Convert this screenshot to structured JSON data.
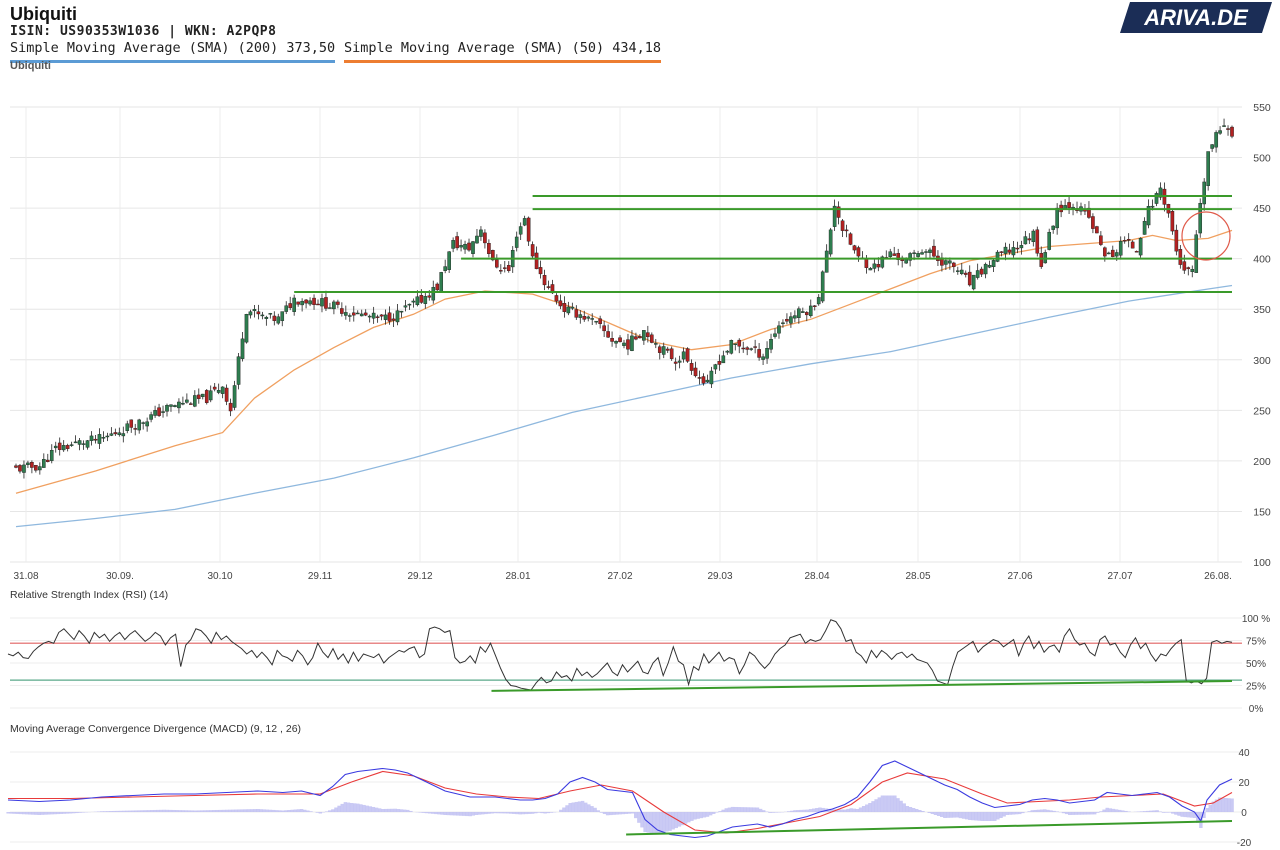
{
  "header": {
    "title": "Ubiquiti",
    "ids": "ISIN: US90353W1036  | WKN: A2PQP8",
    "ghost_title": "Ubiquiti"
  },
  "brand": {
    "logo_text": "ARIVA.DE",
    "navy": "#1b2d56",
    "red": "#c8102e"
  },
  "legend": [
    {
      "label": "Simple Moving Average (SMA) (200) 373,50",
      "color": "#5b9bd5"
    },
    {
      "label": "Simple Moving Average (SMA) (50) 434,18",
      "color": "#ed7d31"
    }
  ],
  "panels": {
    "rsi_label": "Relative Strength Index (RSI) (14)",
    "macd_label": "Moving Average Convergence Divergence (MACD) (9, 12 , 26)"
  },
  "chart_data": [
    {
      "type": "candlestick",
      "x_tick_labels": [
        "31.08",
        "30.09.",
        "30.10",
        "29.11",
        "29.12",
        "28.01",
        "27.02",
        "29.03",
        "28.04",
        "28.05",
        "27.06",
        "27.07",
        "26.08."
      ],
      "y_ticks": [
        100,
        150,
        200,
        250,
        300,
        350,
        400,
        450,
        500,
        550
      ],
      "ylim": [
        100,
        550
      ],
      "grid": true,
      "colors": {
        "up": "#2e7d4f",
        "down": "#b22222",
        "sma200": "#8fb8de",
        "sma50": "#f0a060",
        "levels": "#3a9a2a"
      },
      "close_path": [
        [
          0,
          192
        ],
        [
          6,
          195
        ],
        [
          10,
          212
        ],
        [
          16,
          218
        ],
        [
          22,
          222
        ],
        [
          26,
          230
        ],
        [
          32,
          240
        ],
        [
          38,
          252
        ],
        [
          42,
          258
        ],
        [
          48,
          262
        ],
        [
          52,
          275
        ],
        [
          54,
          250
        ],
        [
          56,
          300
        ],
        [
          58,
          350
        ],
        [
          62,
          342
        ],
        [
          66,
          340
        ],
        [
          70,
          360
        ],
        [
          76,
          358
        ],
        [
          82,
          350
        ],
        [
          86,
          345
        ],
        [
          92,
          340
        ],
        [
          96,
          345
        ],
        [
          100,
          355
        ],
        [
          102,
          360
        ],
        [
          106,
          372
        ],
        [
          108,
          395
        ],
        [
          110,
          415
        ],
        [
          114,
          410
        ],
        [
          117,
          430
        ],
        [
          120,
          395
        ],
        [
          124,
          388
        ],
        [
          126,
          425
        ],
        [
          128,
          440
        ],
        [
          130,
          400
        ],
        [
          134,
          370
        ],
        [
          138,
          350
        ],
        [
          142,
          345
        ],
        [
          146,
          335
        ],
        [
          150,
          320
        ],
        [
          154,
          315
        ],
        [
          158,
          330
        ],
        [
          162,
          312
        ],
        [
          166,
          300
        ],
        [
          168,
          305
        ],
        [
          172,
          282
        ],
        [
          174,
          275
        ],
        [
          176,
          295
        ],
        [
          180,
          315
        ],
        [
          184,
          312
        ],
        [
          188,
          305
        ],
        [
          192,
          335
        ],
        [
          196,
          345
        ],
        [
          200,
          350
        ],
        [
          202,
          365
        ],
        [
          204,
          405
        ],
        [
          206,
          455
        ],
        [
          208,
          430
        ],
        [
          212,
          400
        ],
        [
          216,
          392
        ],
        [
          220,
          405
        ],
        [
          224,
          398
        ],
        [
          228,
          410
        ],
        [
          232,
          400
        ],
        [
          236,
          392
        ],
        [
          238,
          385
        ],
        [
          240,
          375
        ],
        [
          244,
          392
        ],
        [
          248,
          405
        ],
        [
          252,
          412
        ],
        [
          256,
          425
        ],
        [
          258,
          395
        ],
        [
          262,
          450
        ],
        [
          266,
          455
        ],
        [
          270,
          440
        ],
        [
          272,
          422
        ],
        [
          274,
          405
        ],
        [
          276,
          400
        ],
        [
          278,
          418
        ],
        [
          282,
          410
        ],
        [
          284,
          440
        ],
        [
          288,
          470
        ],
        [
          290,
          445
        ],
        [
          292,
          408
        ],
        [
          294,
          385
        ],
        [
          296,
          388
        ],
        [
          298,
          450
        ],
        [
          300,
          505
        ],
        [
          302,
          520
        ],
        [
          304,
          535
        ],
        [
          306,
          525
        ]
      ],
      "sma50_path": [
        [
          0,
          168
        ],
        [
          20,
          190
        ],
        [
          40,
          215
        ],
        [
          52,
          228
        ],
        [
          60,
          262
        ],
        [
          70,
          290
        ],
        [
          80,
          312
        ],
        [
          90,
          332
        ],
        [
          100,
          345
        ],
        [
          108,
          360
        ],
        [
          118,
          368
        ],
        [
          130,
          365
        ],
        [
          140,
          352
        ],
        [
          150,
          335
        ],
        [
          160,
          318
        ],
        [
          170,
          310
        ],
        [
          180,
          315
        ],
        [
          190,
          330
        ],
        [
          200,
          340
        ],
        [
          210,
          355
        ],
        [
          220,
          370
        ],
        [
          230,
          385
        ],
        [
          240,
          398
        ],
        [
          250,
          405
        ],
        [
          260,
          412
        ],
        [
          270,
          415
        ],
        [
          280,
          418
        ],
        [
          286,
          423
        ],
        [
          292,
          418
        ],
        [
          300,
          420
        ],
        [
          306,
          428
        ]
      ],
      "sma200_path": [
        [
          0,
          135
        ],
        [
          20,
          143
        ],
        [
          40,
          152
        ],
        [
          60,
          168
        ],
        [
          80,
          183
        ],
        [
          100,
          203
        ],
        [
          120,
          225
        ],
        [
          140,
          248
        ],
        [
          160,
          265
        ],
        [
          180,
          282
        ],
        [
          200,
          296
        ],
        [
          220,
          308
        ],
        [
          240,
          325
        ],
        [
          260,
          342
        ],
        [
          280,
          358
        ],
        [
          300,
          370
        ],
        [
          306,
          373.5
        ]
      ],
      "support_levels": [
        {
          "y": 462,
          "x_from": 130,
          "x_to": 306
        },
        {
          "y": 449,
          "x_from": 130,
          "x_to": 306
        },
        {
          "y": 400,
          "x_from": 112,
          "x_to": 306
        },
        {
          "y": 367,
          "x_from": 70,
          "x_to": 306
        }
      ]
    },
    {
      "type": "line",
      "name": "RSI",
      "y_tick_labels": [
        "100 %",
        "75%",
        "50%",
        "25%",
        "0%"
      ],
      "ylim": [
        0,
        100
      ],
      "overbought": 72,
      "oversold": 31,
      "values": [
        60,
        58,
        62,
        56,
        55,
        63,
        68,
        72,
        74,
        72,
        84,
        88,
        82,
        76,
        86,
        80,
        72,
        84,
        78,
        82,
        74,
        80,
        84,
        76,
        82,
        86,
        80,
        74,
        78,
        84,
        80,
        70,
        78,
        82,
        46,
        70,
        76,
        88,
        86,
        80,
        72,
        84,
        76,
        80,
        74,
        70,
        66,
        60,
        64,
        56,
        62,
        56,
        48,
        64,
        58,
        56,
        52,
        64,
        58,
        48,
        56,
        72,
        62,
        56,
        66,
        54,
        60,
        50,
        62,
        52,
        60,
        58,
        56,
        60,
        50,
        56,
        60,
        64,
        62,
        66,
        68,
        56,
        60,
        88,
        90,
        88,
        84,
        86,
        56,
        50,
        52,
        58,
        50,
        68,
        62,
        72,
        58,
        44,
        32,
        25,
        24,
        22,
        21,
        20,
        28,
        34,
        28,
        30,
        40,
        34,
        36,
        30,
        44,
        36,
        40,
        34,
        38,
        44,
        50,
        40,
        36,
        48,
        40,
        46,
        52,
        40,
        38,
        50,
        56,
        36,
        50,
        68,
        52,
        48,
        26,
        46,
        42,
        60,
        50,
        56,
        62,
        52,
        56,
        54,
        38,
        48,
        62,
        58,
        50,
        44,
        50,
        60,
        66,
        70,
        78,
        80,
        82,
        72,
        76,
        74,
        76,
        86,
        98,
        96,
        88,
        74,
        76,
        62,
        58,
        50,
        64,
        56,
        64,
        60,
        54,
        60,
        62,
        56,
        60,
        54,
        52,
        50,
        42,
        30,
        28,
        26,
        46,
        62,
        66,
        70,
        74,
        62,
        68,
        72,
        76,
        74,
        68,
        72,
        76,
        58,
        72,
        80,
        66,
        74,
        62,
        68,
        70,
        62,
        80,
        88,
        76,
        70,
        72,
        62,
        58,
        76,
        80,
        70,
        72,
        62,
        56,
        70,
        78,
        66,
        72,
        60,
        52,
        60,
        58,
        66,
        72,
        76,
        30,
        28,
        30,
        27,
        33,
        73,
        75,
        72,
        74,
        73
      ],
      "divergence_line": {
        "from": [
          0.395,
          19
        ],
        "to": [
          1.0,
          30
        ]
      }
    },
    {
      "type": "line",
      "name": "MACD",
      "y_ticks": [
        40,
        20,
        0,
        -20
      ],
      "ylim": [
        -20,
        40
      ],
      "macd": [
        [
          0,
          8
        ],
        [
          10,
          7
        ],
        [
          20,
          8
        ],
        [
          30,
          10
        ],
        [
          40,
          11
        ],
        [
          50,
          12
        ],
        [
          60,
          12
        ],
        [
          70,
          13
        ],
        [
          80,
          14
        ],
        [
          88,
          13
        ],
        [
          94,
          14
        ],
        [
          100,
          11
        ],
        [
          104,
          17
        ],
        [
          108,
          25
        ],
        [
          112,
          27
        ],
        [
          116,
          28
        ],
        [
          120,
          29
        ],
        [
          124,
          28
        ],
        [
          128,
          26
        ],
        [
          132,
          22
        ],
        [
          136,
          18
        ],
        [
          140,
          14
        ],
        [
          144,
          12
        ],
        [
          148,
          10
        ],
        [
          152,
          10
        ],
        [
          156,
          10
        ],
        [
          160,
          9
        ],
        [
          164,
          8
        ],
        [
          168,
          8
        ],
        [
          172,
          9
        ],
        [
          176,
          12
        ],
        [
          180,
          20
        ],
        [
          184,
          23
        ],
        [
          188,
          20
        ],
        [
          192,
          15
        ],
        [
          196,
          14
        ],
        [
          200,
          13
        ],
        [
          204,
          -5
        ],
        [
          208,
          -12
        ],
        [
          212,
          -15
        ],
        [
          216,
          -16
        ],
        [
          220,
          -17
        ],
        [
          224,
          -16
        ],
        [
          228,
          -13
        ],
        [
          232,
          -10
        ],
        [
          236,
          -9
        ],
        [
          240,
          -8
        ],
        [
          244,
          -10
        ],
        [
          248,
          -8
        ],
        [
          252,
          -5
        ],
        [
          256,
          -3
        ],
        [
          260,
          0
        ],
        [
          264,
          2
        ],
        [
          268,
          5
        ],
        [
          272,
          10
        ],
        [
          276,
          20
        ],
        [
          280,
          31
        ],
        [
          284,
          34
        ],
        [
          288,
          30
        ],
        [
          292,
          26
        ],
        [
          296,
          22
        ],
        [
          300,
          18
        ],
        [
          304,
          15
        ],
        [
          308,
          10
        ],
        [
          312,
          6
        ],
        [
          316,
          3
        ],
        [
          320,
          4
        ],
        [
          324,
          5
        ],
        [
          328,
          8
        ],
        [
          332,
          9
        ],
        [
          336,
          8
        ],
        [
          340,
          6
        ],
        [
          344,
          7
        ],
        [
          348,
          8
        ],
        [
          352,
          13
        ],
        [
          356,
          12
        ],
        [
          360,
          11
        ],
        [
          364,
          12
        ],
        [
          368,
          13
        ],
        [
          372,
          10
        ],
        [
          376,
          4
        ],
        [
          380,
          0
        ],
        [
          382,
          -6
        ],
        [
          384,
          8
        ],
        [
          388,
          18
        ],
        [
          392,
          22
        ]
      ],
      "signal": [
        [
          0,
          9
        ],
        [
          20,
          9
        ],
        [
          40,
          10
        ],
        [
          60,
          11
        ],
        [
          80,
          12
        ],
        [
          100,
          12
        ],
        [
          110,
          20
        ],
        [
          120,
          27
        ],
        [
          130,
          24
        ],
        [
          140,
          16
        ],
        [
          150,
          12
        ],
        [
          160,
          10
        ],
        [
          170,
          9
        ],
        [
          180,
          14
        ],
        [
          190,
          18
        ],
        [
          200,
          14
        ],
        [
          210,
          0
        ],
        [
          220,
          -12
        ],
        [
          230,
          -14
        ],
        [
          240,
          -11
        ],
        [
          250,
          -7
        ],
        [
          260,
          -3
        ],
        [
          270,
          5
        ],
        [
          280,
          20
        ],
        [
          288,
          26
        ],
        [
          300,
          22
        ],
        [
          312,
          12
        ],
        [
          320,
          6
        ],
        [
          330,
          7
        ],
        [
          340,
          8
        ],
        [
          350,
          10
        ],
        [
          360,
          11
        ],
        [
          370,
          12
        ],
        [
          380,
          4
        ],
        [
          386,
          6
        ],
        [
          392,
          13
        ]
      ],
      "histogram_dir": "positive means convergence",
      "divergence_line": {
        "from": [
          0.505,
          -15
        ],
        "to": [
          1.0,
          -6
        ]
      }
    }
  ]
}
